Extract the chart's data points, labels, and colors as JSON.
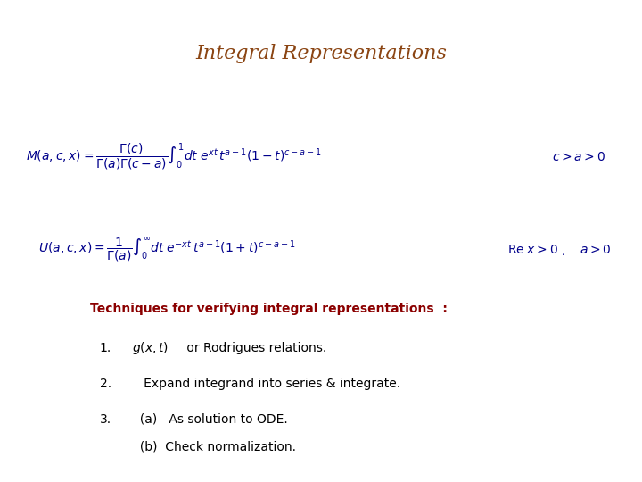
{
  "title": "Integral Representations",
  "title_color": "#8B4513",
  "title_fontsize": 16,
  "bg_color": "#FFFFFF",
  "eq_color": "#00008B",
  "eq_fontsize": 10,
  "techniques_label": "Techniques for verifying integral representations  :",
  "techniques_color": "#8B0000",
  "techniques_fontsize": 10,
  "item1_num": "1.",
  "item1_text": "  or Rodrigues relations.",
  "item2_num": "2.",
  "item2_text": "   Expand integrand into series & integrate.",
  "item3_num": "3.",
  "item3a": "   (a)   As solution to ODE.",
  "item3b": "        (b)  Check normalization.",
  "items_color": "#000000",
  "items_fontsize": 10
}
